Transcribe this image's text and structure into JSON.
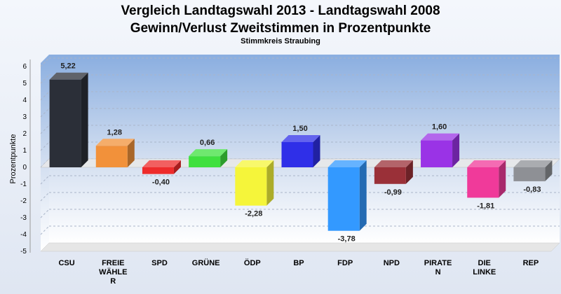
{
  "chart_data": {
    "type": "bar",
    "title": "Vergleich Landtagswahl 2013 - Landtagswahl 2008",
    "subtitle": "Gewinn/Verlust Zweitstimmen in Prozentpunkte",
    "caption": "Stimmkreis Straubing",
    "ylabel": "Prozentpunkte",
    "xlabel": "",
    "ylim": [
      -5,
      6
    ],
    "yticks": [
      "6",
      "5",
      "4",
      "3",
      "2",
      "1",
      "0",
      "-1",
      "-2",
      "-3",
      "-4",
      "-5"
    ],
    "grid": true,
    "categories": [
      {
        "label": [
          "CSU"
        ]
      },
      {
        "label": [
          "FREIE",
          "WÄHLE",
          "R"
        ]
      },
      {
        "label": [
          "SPD"
        ]
      },
      {
        "label": [
          "GRÜNE"
        ]
      },
      {
        "label": [
          "ÖDP"
        ]
      },
      {
        "label": [
          "BP"
        ]
      },
      {
        "label": [
          "FDP"
        ]
      },
      {
        "label": [
          "NPD"
        ]
      },
      {
        "label": [
          "PIRATE",
          "N"
        ]
      },
      {
        "label": [
          "DIE",
          "LINKE"
        ]
      },
      {
        "label": [
          "REP"
        ]
      }
    ],
    "values": [
      5.22,
      1.28,
      -0.4,
      0.66,
      -2.28,
      1.5,
      -3.78,
      -0.99,
      1.6,
      -1.81,
      -0.83
    ],
    "value_labels": [
      "5,22",
      "1,28",
      "-0,40",
      "0,66",
      "-2,28",
      "1,50",
      "-3,78",
      "-0,99",
      "1,60",
      "-1,81",
      "-0,83"
    ],
    "colors": [
      "#2b2f38",
      "#f2913a",
      "#ee2b2b",
      "#3fe03f",
      "#f5f53a",
      "#2f2fe8",
      "#3399ff",
      "#9a3038",
      "#9a33e6",
      "#f03a9a",
      "#8e9095"
    ]
  }
}
